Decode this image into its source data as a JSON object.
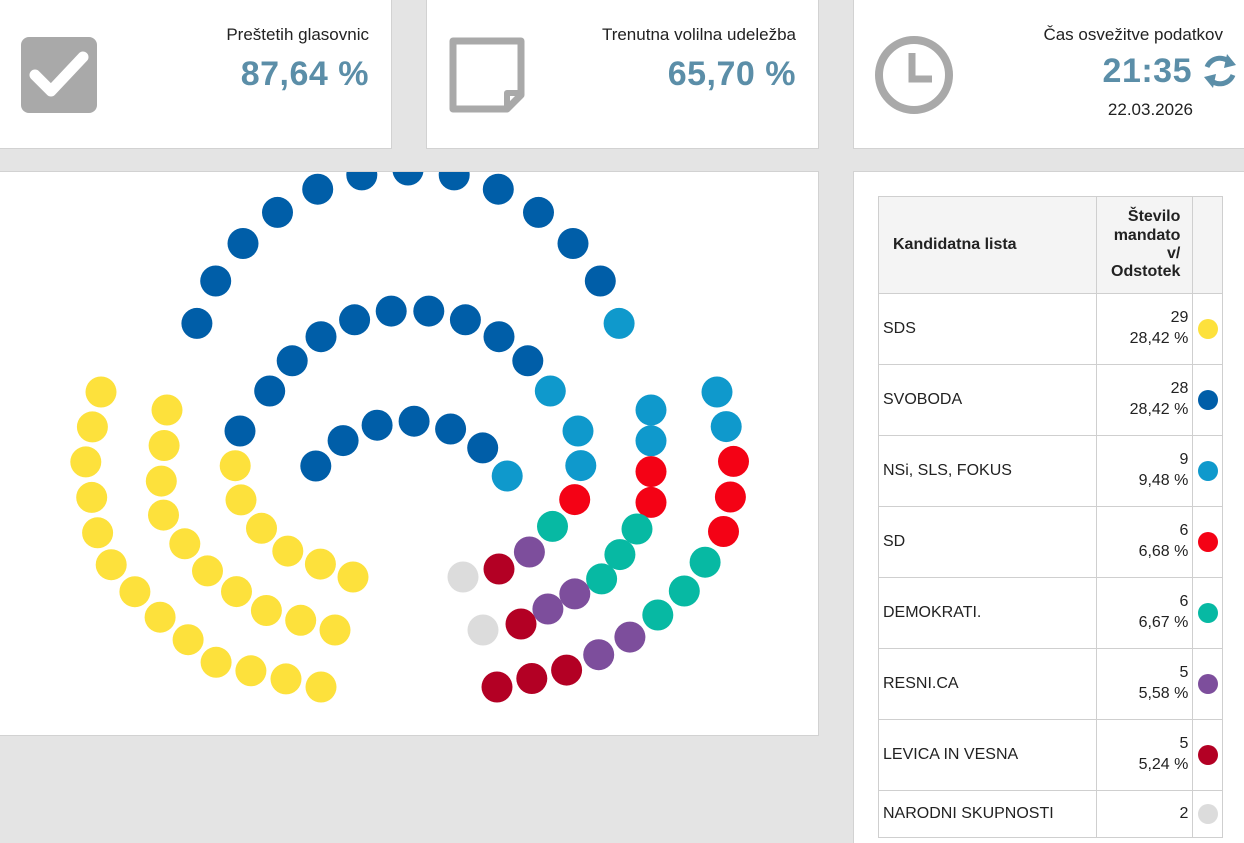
{
  "stats": {
    "counted": {
      "label": "Preštetih glasovnic",
      "value": "87,64 %",
      "icon": "checkmark-icon"
    },
    "turnout": {
      "label": "Trenutna volilna udeležba",
      "value": "65,70 %",
      "icon": "ballot-paper-icon"
    },
    "refresh": {
      "label": "Čas osvežitve podatkov",
      "time": "21:35",
      "date": "22.03.2026",
      "icon": "clock-icon",
      "action_icon": "refresh-icon"
    }
  },
  "colors": {
    "accent": "#5b8ea8",
    "icon_gray": "#a9a9a9"
  },
  "table": {
    "header_list": "Kandidatna lista",
    "header_seats": "Število mandato v/ Odstotek",
    "header_seats_lines": [
      "Število",
      "mandato",
      "v/",
      "Odstotek"
    ]
  },
  "chart_data": {
    "type": "parliament",
    "total_seats": 90,
    "series": [
      {
        "name": "SDS",
        "seats": 29,
        "seats_label": "29",
        "percent": "28,42 %",
        "color": "#fde13c"
      },
      {
        "name": "SVOBODA",
        "seats": 28,
        "seats_label": "28",
        "percent": "28,42 %",
        "color": "#005ea8"
      },
      {
        "name": "NSi, SLS, FOKUS",
        "seats": 9,
        "seats_label": "9",
        "percent": "9,48 %",
        "color": "#0f99cc"
      },
      {
        "name": "SD",
        "seats": 6,
        "seats_label": "6",
        "percent": "6,68 %",
        "color": "#f40215"
      },
      {
        "name": "DEMOKRATI.",
        "seats": 6,
        "seats_label": "6",
        "percent": "6,67 %",
        "color": "#07b9a3"
      },
      {
        "name": "RESNI.CA",
        "seats": 5,
        "seats_label": "5",
        "percent": "5,58 %",
        "color": "#7d4e9c"
      },
      {
        "name": "LEVICA IN VESNA",
        "seats": 5,
        "seats_label": "5",
        "percent": "5,24 %",
        "color": "#b30024"
      },
      {
        "name": "NARODNI SKUPNOSTI",
        "seats": 2,
        "seats_label": "2",
        "percent": "",
        "color": "#dcdcdc"
      }
    ]
  }
}
